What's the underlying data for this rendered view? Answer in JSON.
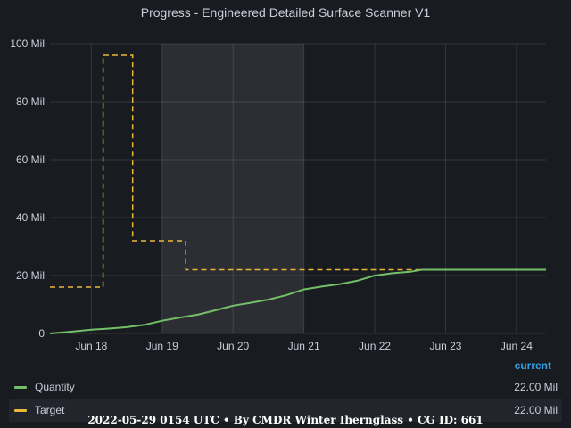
{
  "panel": {
    "title": "Progress - Engineered Detailed Surface Scanner V1"
  },
  "chart_data": {
    "type": "line",
    "title": "Progress - Engineered Detailed Surface Scanner V1",
    "xlabel": "",
    "ylabel": "",
    "x_ticks": [
      "Jun 18",
      "Jun 19",
      "Jun 20",
      "Jun 21",
      "Jun 22",
      "Jun 23",
      "Jun 24"
    ],
    "y_ticks": [
      "0",
      "20 Mil",
      "40 Mil",
      "60 Mil",
      "80 Mil",
      "100 Mil"
    ],
    "ylim": [
      0,
      100000000
    ],
    "xlim": [
      "2022-06-17T10:00",
      "2022-06-24T10:00"
    ],
    "grid": true,
    "highlight_range": [
      "2022-06-19T00:00",
      "2022-06-21T00:00"
    ],
    "series": [
      {
        "name": "Quantity",
        "color": "#73bf69",
        "style": "solid",
        "points": [
          [
            "2022-06-17T10:00",
            0
          ],
          [
            "2022-06-17T16:00",
            500000
          ],
          [
            "2022-06-18T00:00",
            1300000
          ],
          [
            "2022-06-18T06:00",
            1700000
          ],
          [
            "2022-06-18T12:00",
            2200000
          ],
          [
            "2022-06-18T18:00",
            3000000
          ],
          [
            "2022-06-19T00:00",
            4400000
          ],
          [
            "2022-06-19T06:00",
            5500000
          ],
          [
            "2022-06-19T12:00",
            6500000
          ],
          [
            "2022-06-19T18:00",
            8000000
          ],
          [
            "2022-06-20T00:00",
            9600000
          ],
          [
            "2022-06-20T06:00",
            10600000
          ],
          [
            "2022-06-20T12:00",
            11700000
          ],
          [
            "2022-06-20T18:00",
            13200000
          ],
          [
            "2022-06-21T00:00",
            15200000
          ],
          [
            "2022-06-21T06:00",
            16200000
          ],
          [
            "2022-06-21T12:00",
            17000000
          ],
          [
            "2022-06-21T18:00",
            18200000
          ],
          [
            "2022-06-22T00:00",
            20000000
          ],
          [
            "2022-06-22T06:00",
            20800000
          ],
          [
            "2022-06-22T12:00",
            21300000
          ],
          [
            "2022-06-22T16:00",
            22000000
          ],
          [
            "2022-06-24T10:00",
            22000000
          ]
        ]
      },
      {
        "name": "Target",
        "color": "#eab839",
        "style": "dashed-step",
        "points": [
          [
            "2022-06-17T10:00",
            16000000
          ],
          [
            "2022-06-18T04:00",
            16000000
          ],
          [
            "2022-06-18T04:00",
            96000000
          ],
          [
            "2022-06-18T14:00",
            96000000
          ],
          [
            "2022-06-18T14:00",
            32000000
          ],
          [
            "2022-06-19T08:00",
            32000000
          ],
          [
            "2022-06-19T08:00",
            22000000
          ],
          [
            "2022-06-24T10:00",
            22000000
          ]
        ]
      }
    ]
  },
  "legend": {
    "header": "current",
    "items": [
      {
        "name": "Quantity",
        "value": "22.00 Mil",
        "color": "#73bf69"
      },
      {
        "name": "Target",
        "value": "22.00 Mil",
        "color": "#eab839"
      }
    ]
  },
  "footer": {
    "text": "2022-05-29 0154 UTC • By CMDR Winter Iherngla‌ss • CG ID: 661"
  }
}
